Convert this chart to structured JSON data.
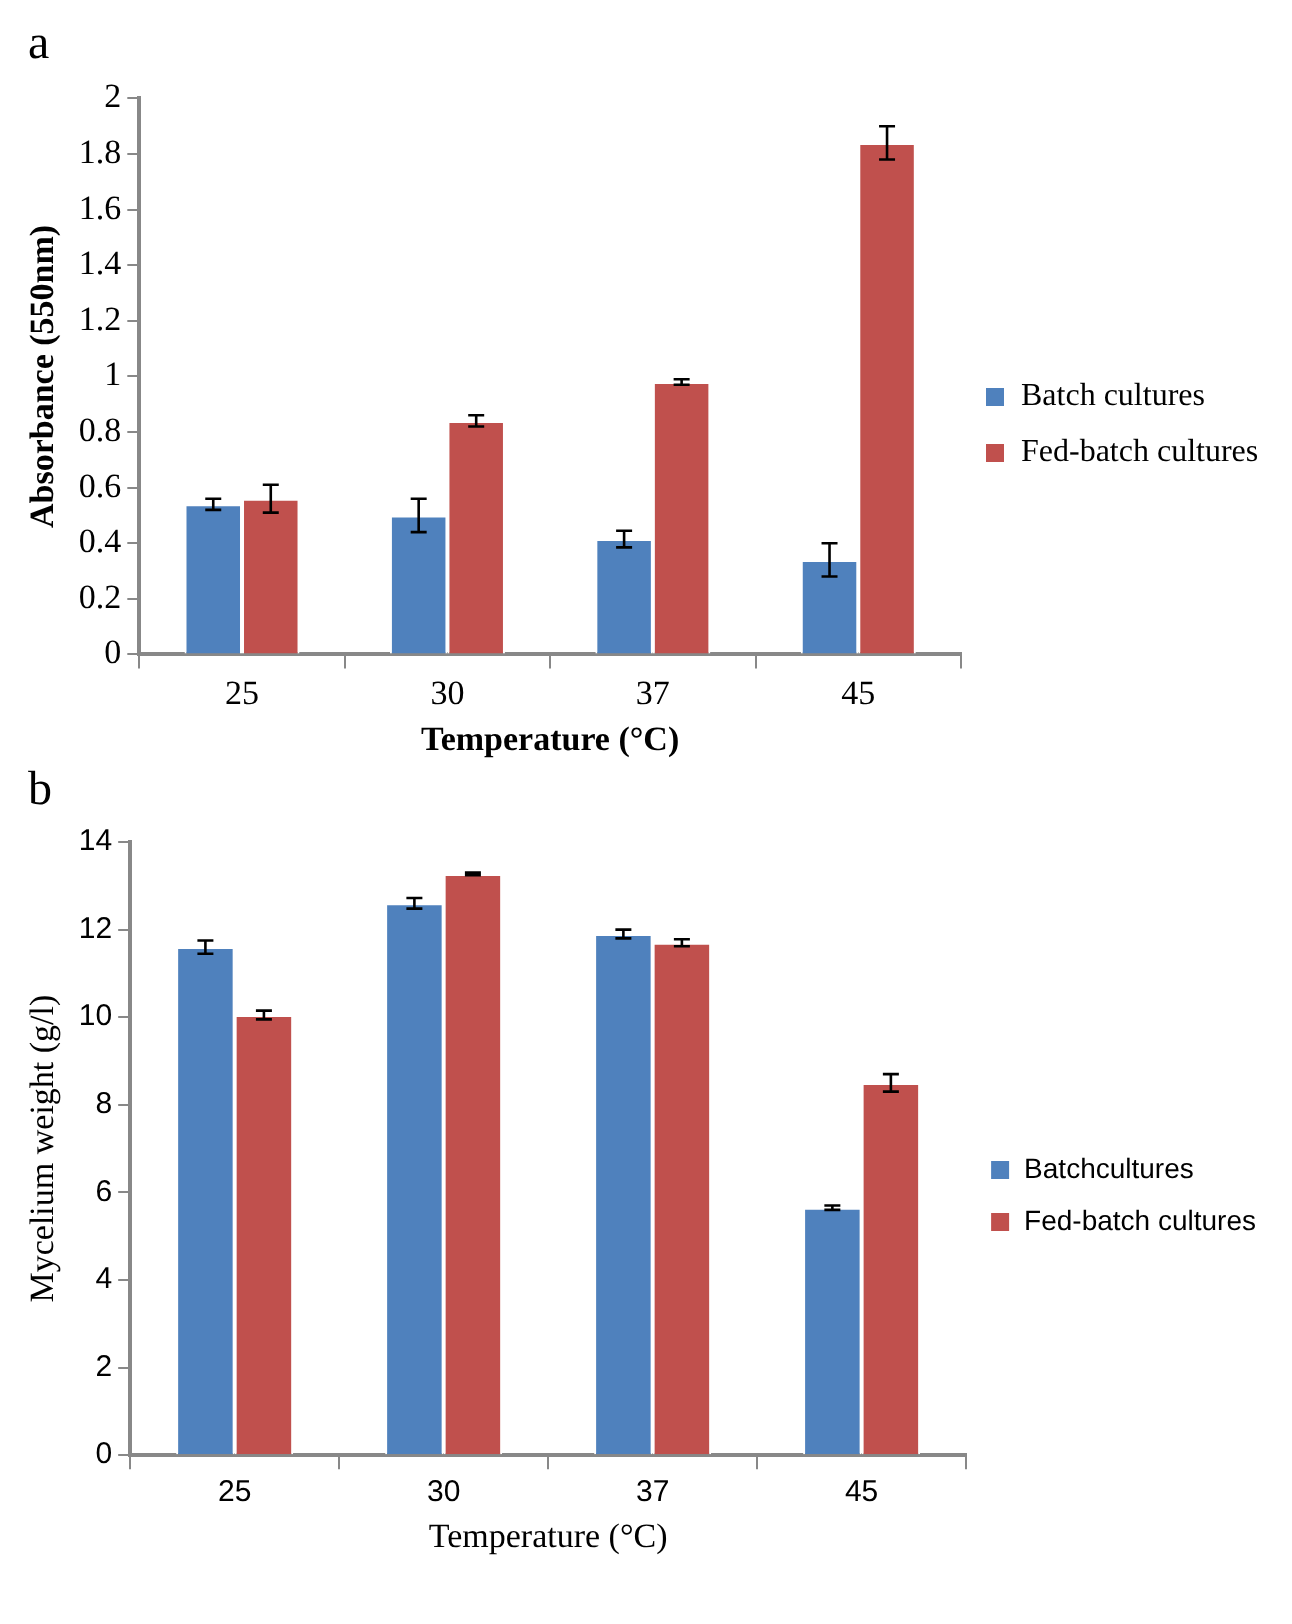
{
  "chart_data": [
    {
      "type": "bar",
      "title": "a",
      "xlabel": "Temperature (°C)",
      "ylabel": "Absorbance (550nm)",
      "categories": [
        "25",
        "30",
        "37",
        "45"
      ],
      "series": [
        {
          "name": "Batch cultures",
          "color": "#4f81bd",
          "values": [
            0.54,
            0.5,
            0.415,
            0.34
          ],
          "errors": [
            0.02,
            0.06,
            0.03,
            0.06
          ]
        },
        {
          "name": "Fed-batch cultures",
          "color": "#c0504d",
          "values": [
            0.56,
            0.84,
            0.98,
            1.84
          ],
          "errors": [
            0.05,
            0.02,
            0.01,
            0.06
          ]
        }
      ],
      "ylim": [
        0,
        2
      ],
      "yticks": [
        0,
        0.2,
        0.4,
        0.6,
        0.8,
        1,
        1.2,
        1.4,
        1.6,
        1.8,
        2
      ],
      "grid": false,
      "legend": "right"
    },
    {
      "type": "bar",
      "title": "b",
      "xlabel": "Temperature (°C)",
      "ylabel": "Mycelium weight (g/l)",
      "categories": [
        "25",
        "30",
        "37",
        "45"
      ],
      "series": [
        {
          "name": "Batchcultures",
          "color": "#4f81bd",
          "values": [
            11.6,
            12.6,
            11.9,
            5.65
          ],
          "errors": [
            0.15,
            0.12,
            0.1,
            0.05
          ]
        },
        {
          "name": "Fed-batch cultures",
          "color": "#c0504d",
          "values": [
            10.05,
            13.27,
            11.7,
            8.5
          ],
          "errors": [
            0.1,
            0.03,
            0.08,
            0.2
          ]
        }
      ],
      "ylim": [
        0,
        14
      ],
      "yticks": [
        0,
        2,
        4,
        6,
        8,
        10,
        12,
        14
      ],
      "grid": false,
      "legend": "right"
    }
  ]
}
